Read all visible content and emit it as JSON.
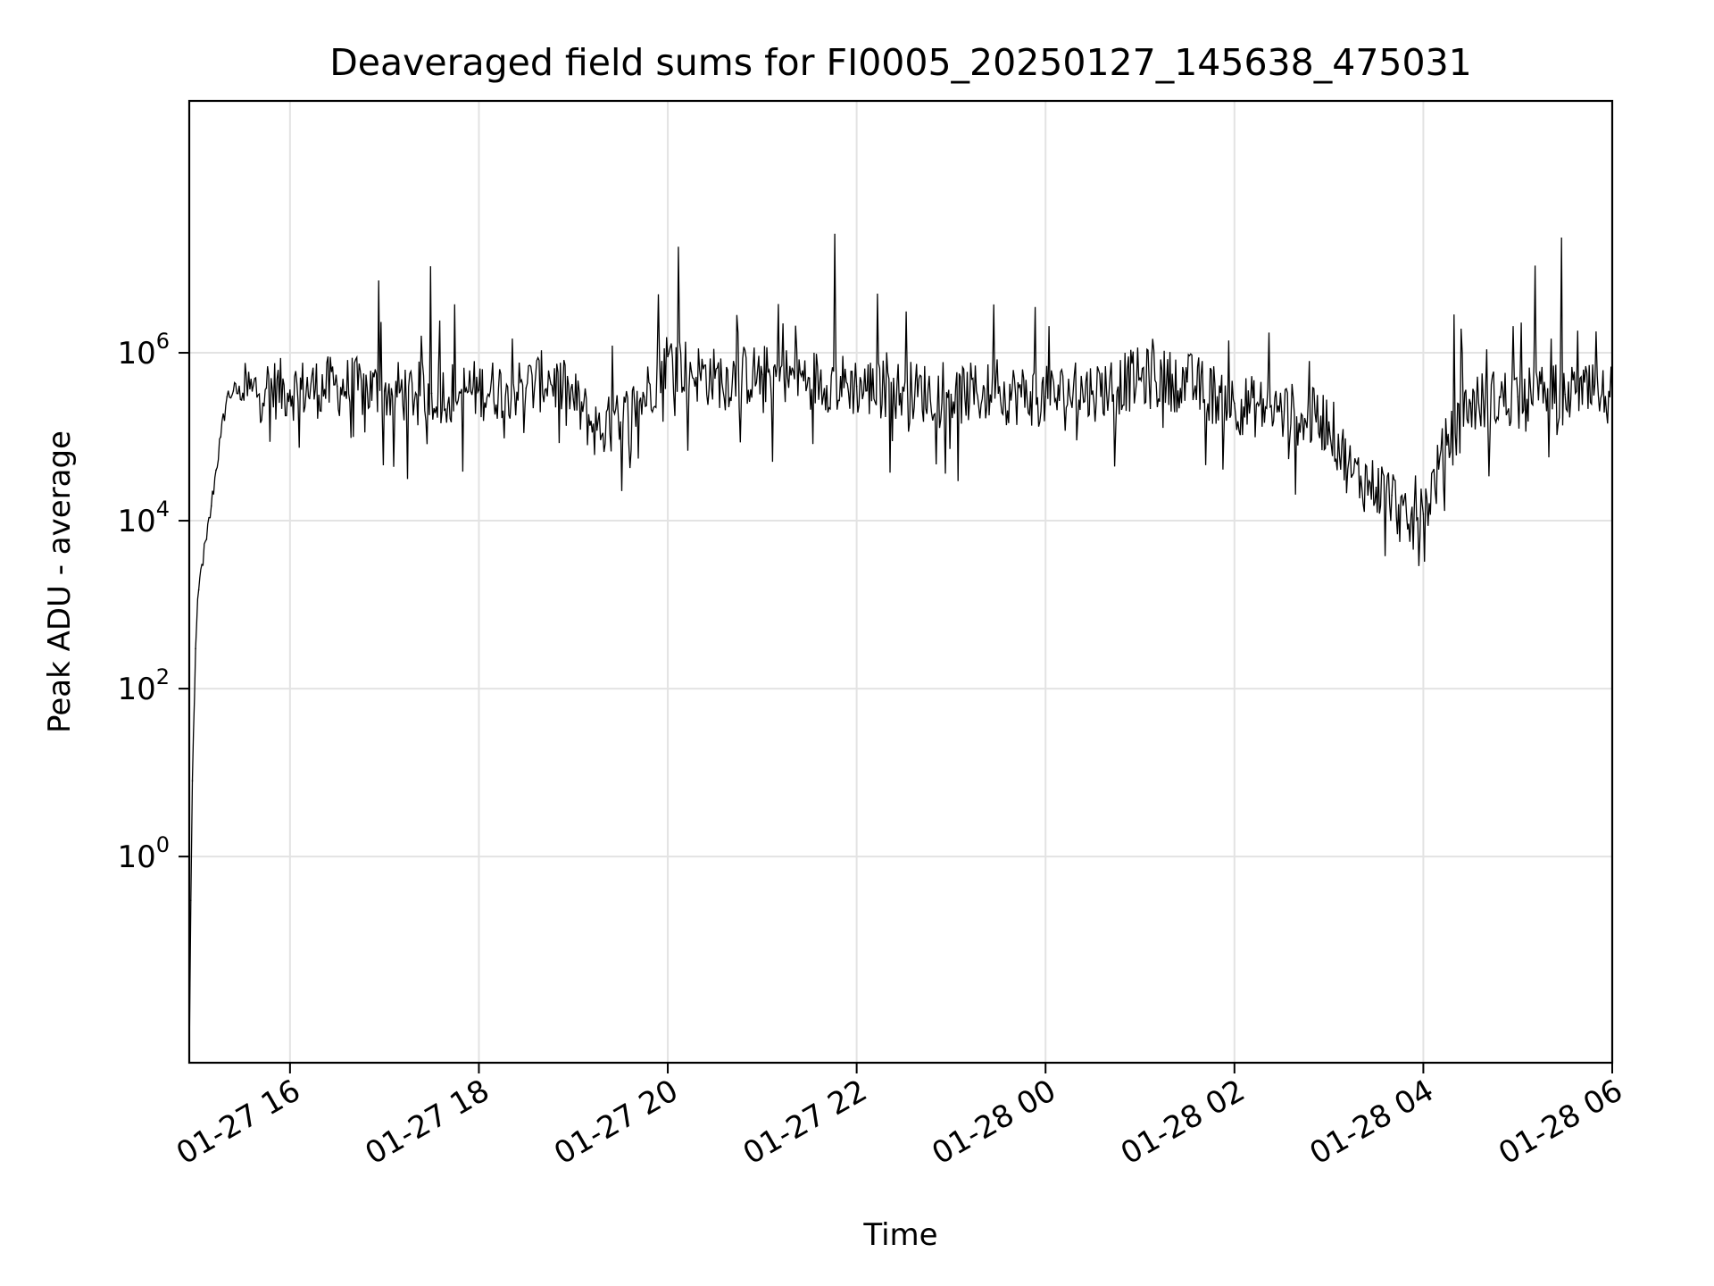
{
  "chart_data": {
    "type": "line",
    "title": "Deaveraged field sums for FI0005_20250127_145638_475031",
    "xlabel": "Time",
    "ylabel": "Peak ADU - average",
    "x_tick_labels": [
      "01-27 16",
      "01-27 18",
      "01-27 20",
      "01-27 22",
      "01-28 00",
      "01-28 02",
      "01-28 04",
      "01-28 06"
    ],
    "x_ticks": [
      "2025-01-27 16:00",
      "2025-01-27 18:00",
      "2025-01-27 20:00",
      "2025-01-27 22:00",
      "2025-01-28 00:00",
      "2025-01-28 02:00",
      "2025-01-28 04:00",
      "2025-01-28 06:00"
    ],
    "xlim": [
      "2025-01-27 14:56",
      "2025-01-28 06:00"
    ],
    "yscale": "log",
    "ylim": [
      0.0035,
      1000000000
    ],
    "y_ticks": [
      {
        "value": 1,
        "base": "10",
        "exp": "0"
      },
      {
        "value": 100,
        "base": "10",
        "exp": "2"
      },
      {
        "value": 10000,
        "base": "10",
        "exp": "4"
      },
      {
        "value": 1000000,
        "base": "10",
        "exp": "6"
      }
    ],
    "grid": true,
    "line_color": "#000000",
    "series": [
      {
        "x": [
          "2025-01-27 14:56",
          "2025-01-27 14:57",
          "2025-01-27 14:58",
          "2025-01-27 15:00",
          "2025-01-27 15:02",
          "2025-01-27 15:04",
          "2025-01-27 15:07",
          "2025-01-27 15:10",
          "2025-01-27 15:13",
          "2025-01-27 15:16",
          "2025-01-27 15:20",
          "2025-01-27 15:24",
          "2025-01-27 15:30",
          "2025-01-27 15:36",
          "2025-01-27 15:45",
          "2025-01-27 16:00",
          "2025-01-27 16:30",
          "2025-01-27 17:00",
          "2025-01-27 17:30",
          "2025-01-27 18:00",
          "2025-01-27 18:30",
          "2025-01-27 18:45",
          "2025-01-27 19:00",
          "2025-01-27 19:15",
          "2025-01-27 19:30",
          "2025-01-27 19:45",
          "2025-01-27 20:00",
          "2025-01-27 20:15",
          "2025-01-27 20:30",
          "2025-01-27 21:00",
          "2025-01-27 21:30",
          "2025-01-27 22:00",
          "2025-01-27 22:30",
          "2025-01-27 23:00",
          "2025-01-27 23:30",
          "2025-01-28 00:00",
          "2025-01-28 00:30",
          "2025-01-28 01:00",
          "2025-01-28 01:30",
          "2025-01-28 02:00",
          "2025-01-28 02:30",
          "2025-01-28 03:00",
          "2025-01-28 03:15",
          "2025-01-28 03:30",
          "2025-01-28 03:40",
          "2025-01-28 03:50",
          "2025-01-28 04:00",
          "2025-01-28 04:15",
          "2025-01-28 04:30",
          "2025-01-28 05:00",
          "2025-01-28 05:30",
          "2025-01-28 06:00"
        ],
        "y": [
          0.004,
          0.3,
          8,
          300,
          1500,
          3000,
          6000,
          15000,
          40000,
          100000,
          300000,
          350000,
          330000,
          350000,
          380000,
          360000,
          400000,
          350000,
          330000,
          360000,
          380000,
          500000,
          280000,
          120000,
          150000,
          300000,
          900000,
          600000,
          500000,
          550000,
          500000,
          400000,
          350000,
          320000,
          330000,
          300000,
          350000,
          500000,
          450000,
          250000,
          200000,
          150000,
          35000,
          25000,
          20000,
          8000,
          12000,
          80000,
          250000,
          300000,
          320000,
          300000
        ]
      }
    ]
  }
}
